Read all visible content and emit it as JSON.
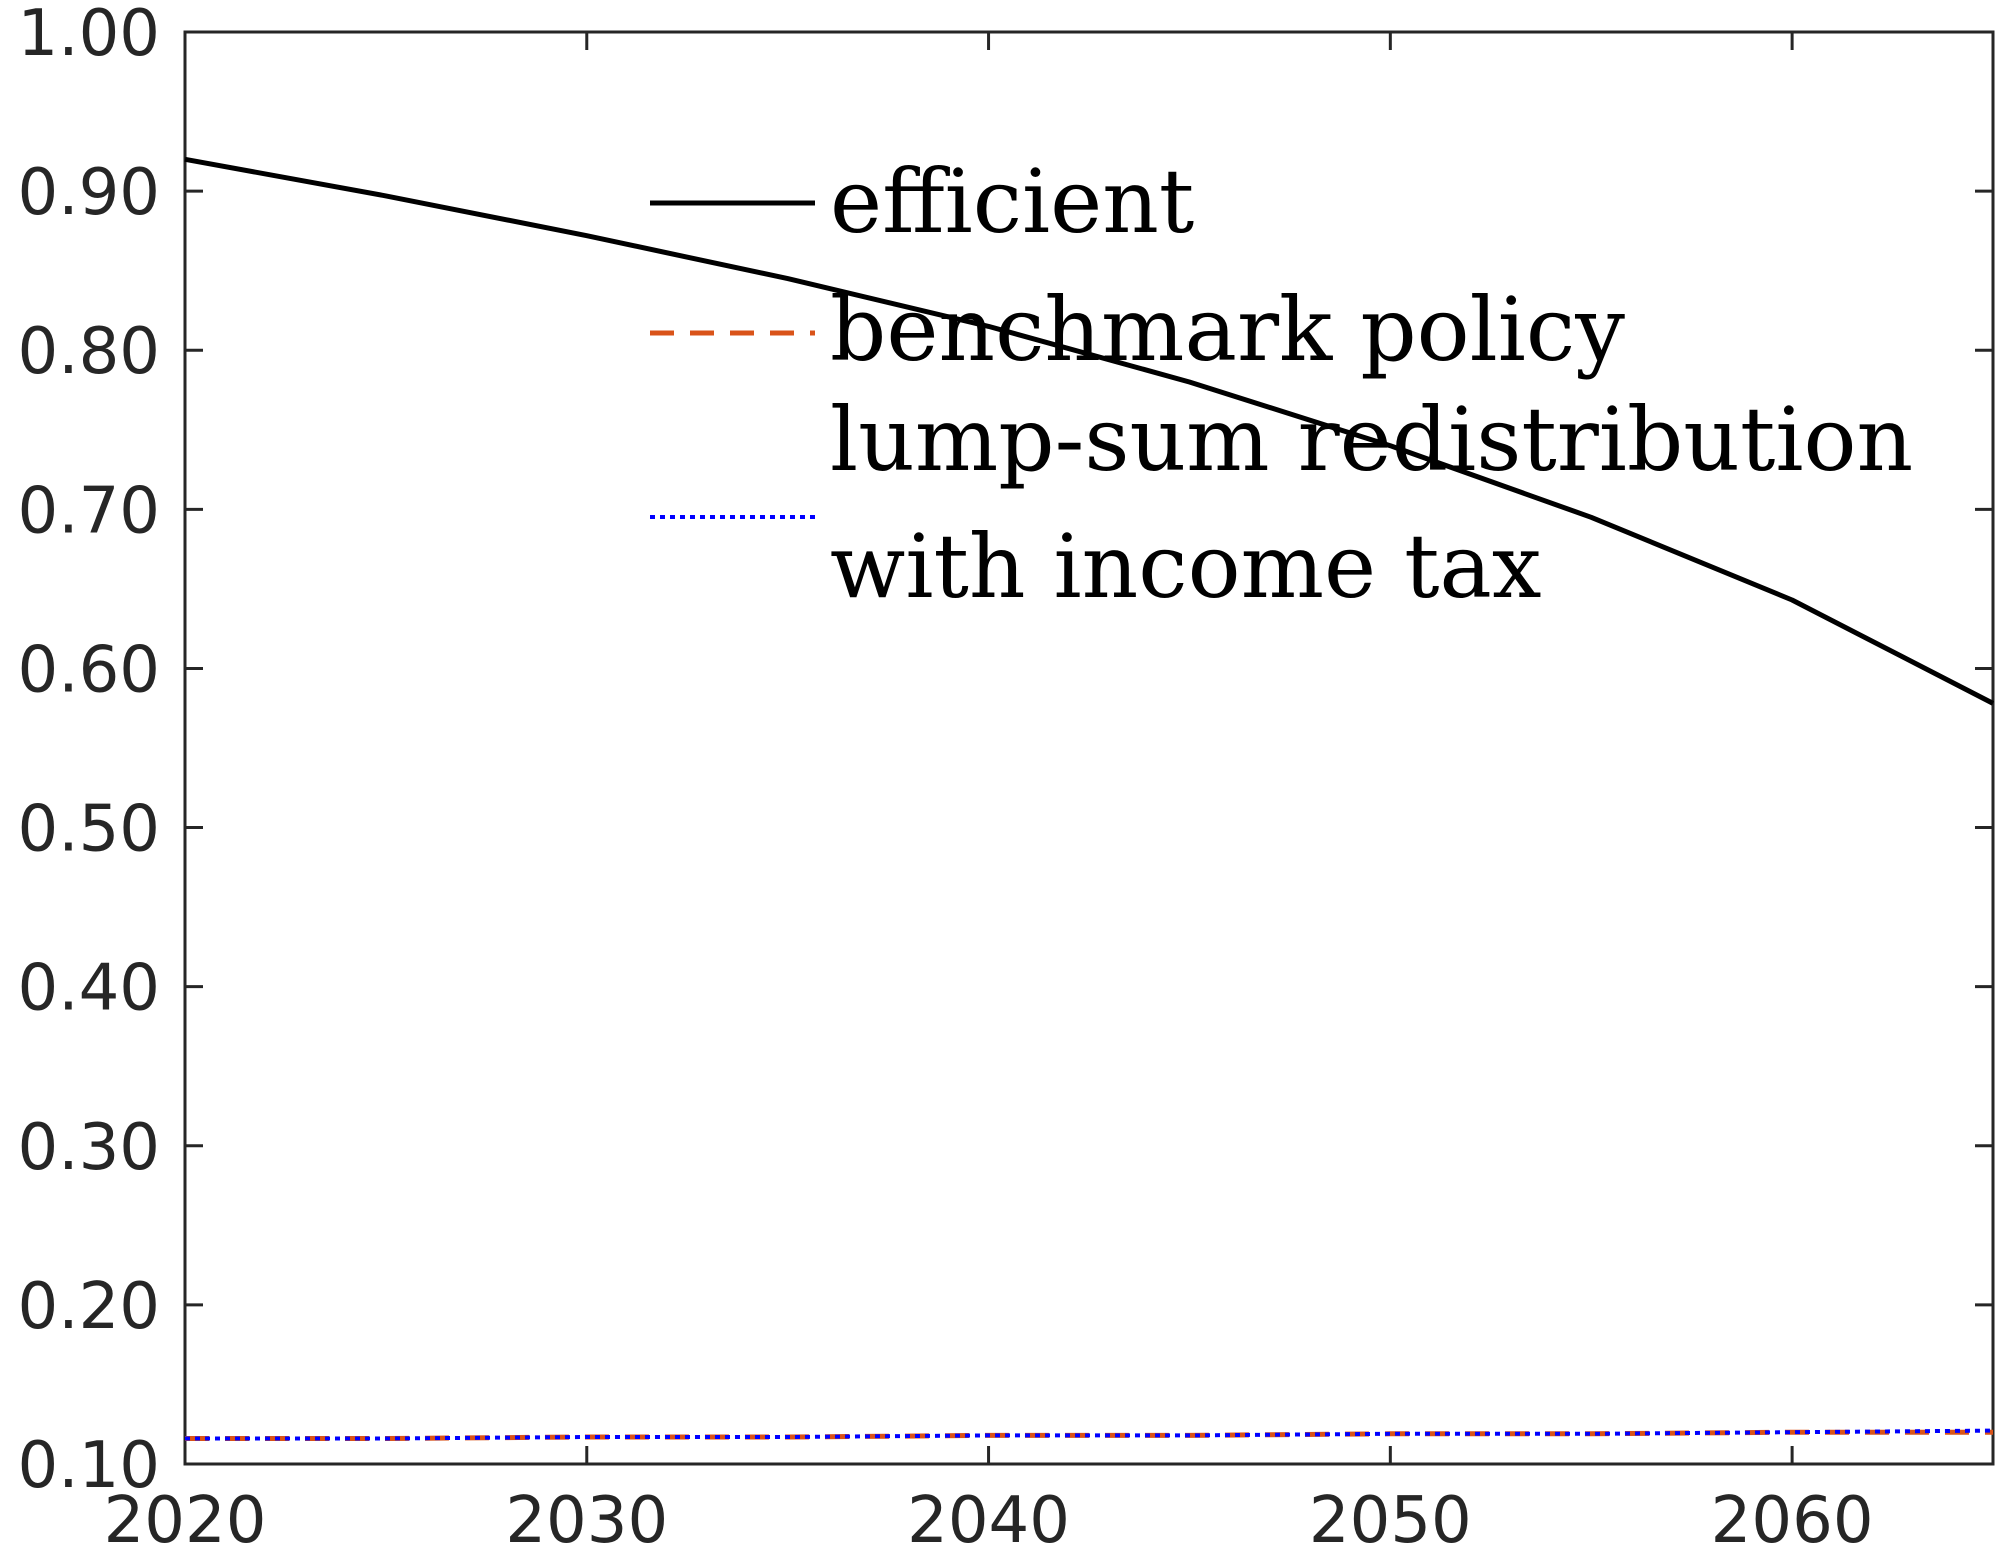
{
  "chart_data": {
    "type": "line",
    "title": "",
    "xlabel": "",
    "ylabel": "",
    "xlim": [
      2020,
      2065
    ],
    "ylim": [
      0.1,
      1.0
    ],
    "xticks": [
      "2020",
      "2030",
      "2040",
      "2050",
      "2060"
    ],
    "xtick_values": [
      2020,
      2030,
      2040,
      2050,
      2060
    ],
    "yticks": [
      "0.10",
      "0.20",
      "0.30",
      "0.40",
      "0.50",
      "0.60",
      "0.70",
      "0.80",
      "0.90",
      "1.00"
    ],
    "ytick_values": [
      0.1,
      0.2,
      0.3,
      0.4,
      0.5,
      0.6,
      0.7,
      0.8,
      0.9,
      1.0
    ],
    "grid": false,
    "legend_position": "top-center",
    "x": [
      2020,
      2025,
      2030,
      2035,
      2040,
      2045,
      2050,
      2055,
      2060,
      2065
    ],
    "series": [
      {
        "name": "efficient",
        "legend_lines": [
          "efficient"
        ],
        "style": "solid",
        "color": "#000000",
        "values": [
          0.92,
          0.897,
          0.872,
          0.845,
          0.815,
          0.78,
          0.74,
          0.695,
          0.643,
          0.578
        ]
      },
      {
        "name": "benchmark policy",
        "legend_lines": [
          "benchmark policy"
        ],
        "style": "dashed",
        "color": "#D95319",
        "values": [
          0.116,
          0.116,
          0.117,
          0.117,
          0.118,
          0.118,
          0.119,
          0.119,
          0.12,
          0.12
        ]
      },
      {
        "name": "lump-sum redistribution with income tax",
        "legend_lines": [
          "lump-sum redistribution",
          "with income tax"
        ],
        "style": "dotted",
        "color": "#0000FF",
        "values": [
          0.116,
          0.116,
          0.117,
          0.117,
          0.118,
          0.118,
          0.119,
          0.119,
          0.12,
          0.121
        ]
      }
    ]
  }
}
